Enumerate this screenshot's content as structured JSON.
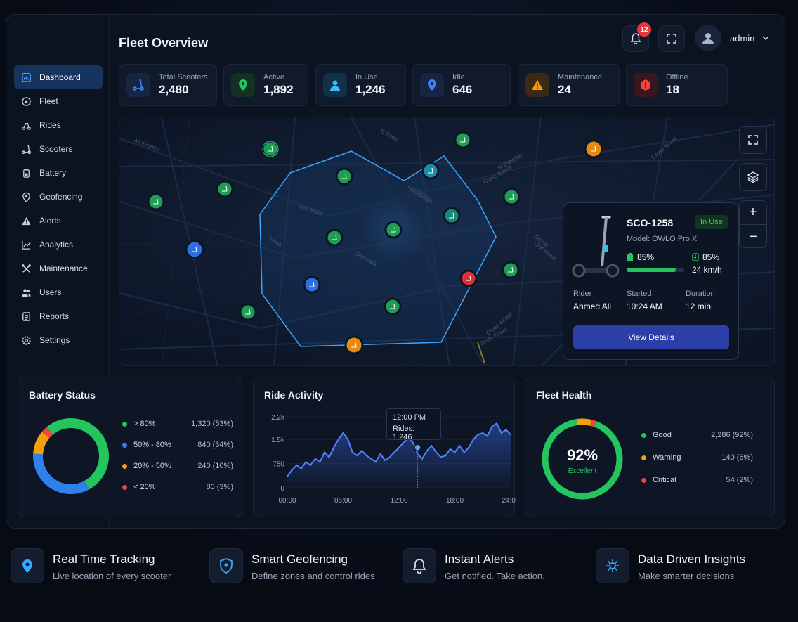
{
  "header": {
    "title": "Fleet Overview",
    "notifications": "12",
    "user": "admin"
  },
  "sidebar": {
    "items": [
      {
        "label": "Dashboard",
        "icon": "dashboard-icon"
      },
      {
        "label": "Fleet",
        "icon": "fleet-icon"
      },
      {
        "label": "Rides",
        "icon": "rides-icon"
      },
      {
        "label": "Scooters",
        "icon": "scooter-icon"
      },
      {
        "label": "Battery",
        "icon": "battery-icon"
      },
      {
        "label": "Geofencing",
        "icon": "location-pin-icon"
      },
      {
        "label": "Alerts",
        "icon": "alert-icon"
      },
      {
        "label": "Analytics",
        "icon": "analytics-icon"
      },
      {
        "label": "Maintenance",
        "icon": "tools-icon"
      },
      {
        "label": "Users",
        "icon": "users-icon"
      },
      {
        "label": "Reports",
        "icon": "reports-icon"
      },
      {
        "label": "Settings",
        "icon": "gear-icon"
      }
    ]
  },
  "stats": [
    {
      "label": "Total Scooters",
      "value": "2,480",
      "color": "#3b82f6"
    },
    {
      "label": "Active",
      "value": "1,892",
      "color": "#22c55e"
    },
    {
      "label": "In Use",
      "value": "1,246",
      "color": "#38bdf8"
    },
    {
      "label": "Idle",
      "value": "646",
      "color": "#3b82f6"
    },
    {
      "label": "Maintenance",
      "value": "24",
      "color": "#f59e0b"
    },
    {
      "label": "Offline",
      "value": "18",
      "color": "#ef4444"
    }
  ],
  "map": {
    "streets": [
      "Al Sadd",
      "Ali Ibrahim",
      "Zad Malik",
      "Cowell",
      "Al Bahmah",
      "Al Manaur",
      "Zad Malik",
      "Olaf Rasid",
      "Cross Street",
      "Zahrat",
      "Grafe Street",
      "Cross Street",
      "Cross Street",
      "Olaf Rasid"
    ]
  },
  "popup": {
    "id": "SCO-1258",
    "status": "In Use",
    "model": "Model: OWLO Pro X",
    "battery": "85%",
    "battery_level": 0.85,
    "signal": "85%",
    "speed": "24 km/h",
    "rider_label": "Rider",
    "rider": "Ahmed Ali",
    "started_label": "Started",
    "started": "10:24 AM",
    "duration_label": "Duration",
    "duration": "12 min",
    "button": "View Details"
  },
  "battery_status": {
    "title": "Battery Status",
    "segments": [
      {
        "label": "> 80%",
        "value": "1,320 (53%)",
        "pct": 53,
        "color": "#22c55e"
      },
      {
        "label": "50% - 80%",
        "value": "840 (34%)",
        "pct": 34,
        "color": "#2f80ed"
      },
      {
        "label": "20% - 50%",
        "value": "240 (10%)",
        "pct": 10,
        "color": "#f59e0b"
      },
      {
        "label": "< 20%",
        "value": "80 (3%)",
        "pct": 3,
        "color": "#ef4444"
      }
    ]
  },
  "ride_activity": {
    "title": "Ride Activity",
    "tooltip_time": "12:00 PM",
    "tooltip_value": "Rides: 1,246",
    "chart_data": {
      "type": "area",
      "title": "Ride Activity",
      "x_ticks": [
        "00:00",
        "06:00",
        "12:00",
        "18:00",
        "24:00"
      ],
      "y_ticks": [
        "2.2k",
        "1.5k",
        "750",
        "0"
      ],
      "ylim": [
        0,
        2200
      ],
      "xlim": [
        0,
        24
      ],
      "x": [
        0,
        0.5,
        1,
        1.5,
        2,
        2.5,
        3,
        3.5,
        4,
        4.5,
        5,
        5.5,
        6,
        6.5,
        7,
        7.5,
        8,
        8.5,
        9,
        9.5,
        10,
        10.5,
        11,
        11.5,
        12,
        12.5,
        13,
        13.5,
        14,
        14.5,
        15,
        15.5,
        16,
        16.5,
        17,
        17.5,
        18,
        18.5,
        19,
        19.5,
        20,
        20.5,
        21,
        21.5,
        22,
        22.5,
        23,
        23.5,
        24
      ],
      "y": [
        350,
        550,
        700,
        600,
        800,
        700,
        900,
        800,
        1100,
        950,
        1250,
        1500,
        1700,
        1500,
        1100,
        1000,
        1150,
        1000,
        900,
        800,
        1050,
        850,
        950,
        1100,
        1246,
        1400,
        1550,
        1400,
        1050,
        900,
        1150,
        1300,
        1100,
        950,
        1000,
        1200,
        1100,
        1300,
        1100,
        1250,
        1500,
        1650,
        1700,
        1600,
        1900,
        2000,
        1700,
        1800,
        1650
      ],
      "grid": true
    }
  },
  "fleet_health": {
    "title": "Fleet Health",
    "percent": "92%",
    "label": "Excellent",
    "segments": [
      {
        "label": "Good",
        "value": "2,286 (92%)",
        "pct": 92,
        "color": "#22c55e"
      },
      {
        "label": "Warning",
        "value": "140 (6%)",
        "pct": 6,
        "color": "#f59e0b"
      },
      {
        "label": "Critical",
        "value": "54 (2%)",
        "pct": 2,
        "color": "#ef4444"
      }
    ]
  },
  "features": [
    {
      "title": "Real Time Tracking",
      "sub": "Live location of every scooter",
      "icon": "location-pin-icon"
    },
    {
      "title": "Smart Geofencing",
      "sub": "Define zones and control rides",
      "icon": "shield-icon"
    },
    {
      "title": "Instant Alerts",
      "sub": "Get notified. Take action.",
      "icon": "bell-icon"
    },
    {
      "title": "Data Driven Insights",
      "sub": "Make smarter decisions",
      "icon": "brain-icon"
    }
  ]
}
